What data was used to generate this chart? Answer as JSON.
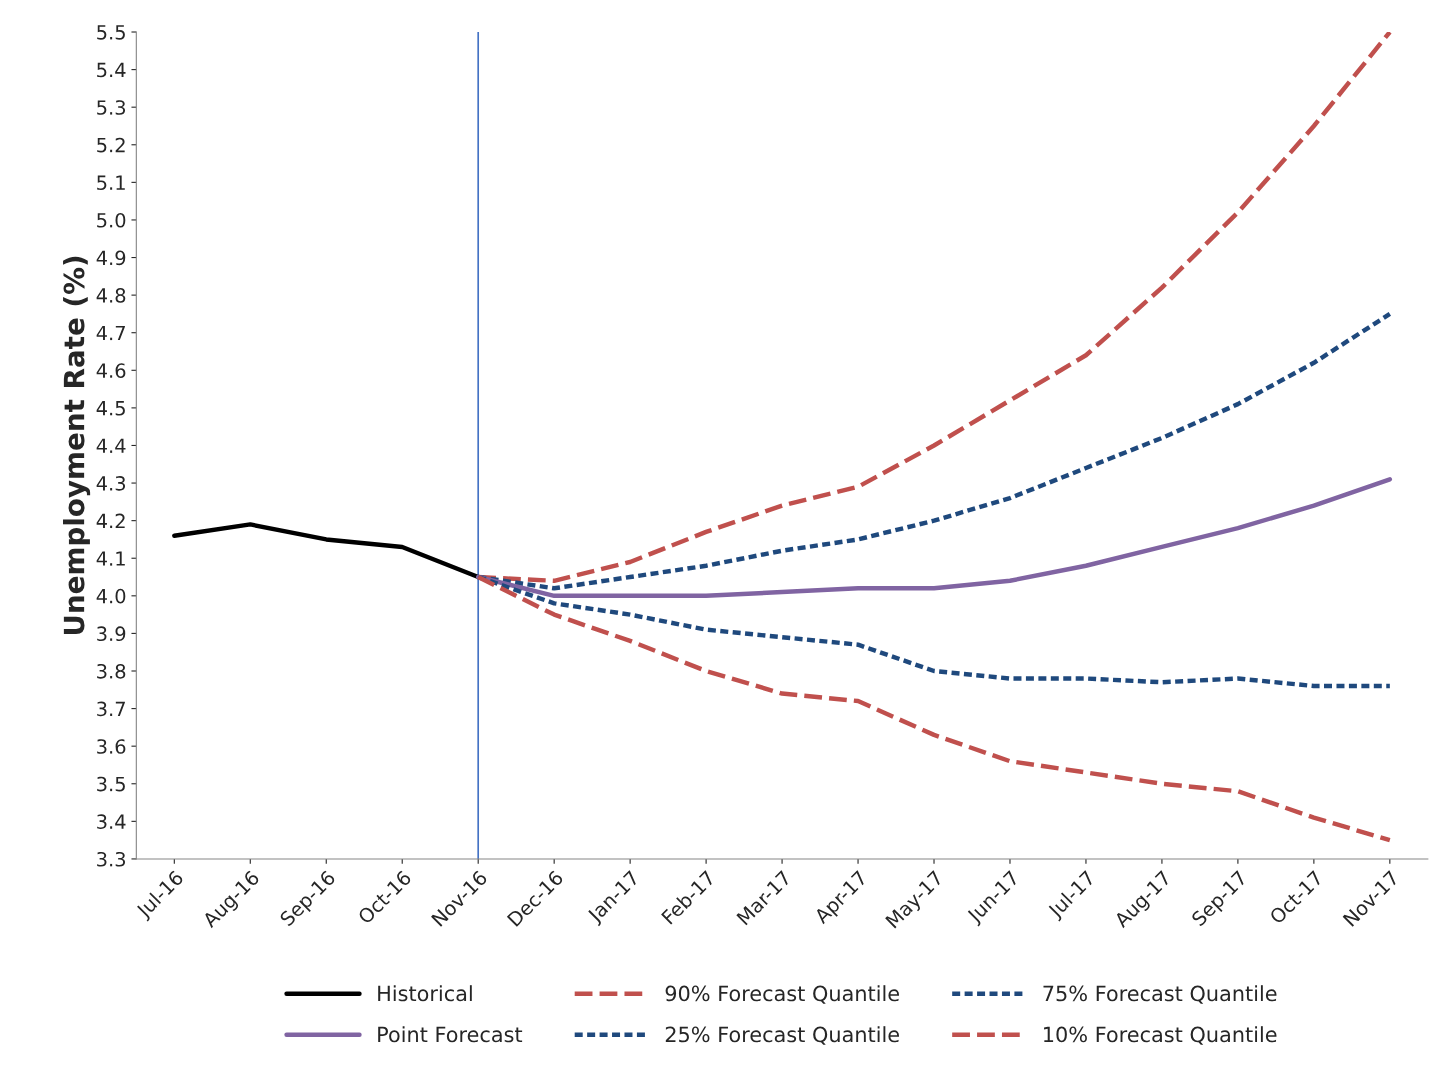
{
  "chart_data": {
    "type": "line",
    "ylabel": "Unemployment Rate (%)",
    "categories": [
      "Jul-16",
      "Aug-16",
      "Sep-16",
      "Oct-16",
      "Nov-16",
      "Dec-16",
      "Jan-17",
      "Feb-17",
      "Mar-17",
      "Apr-17",
      "May-17",
      "Jun-17",
      "Jul-17",
      "Aug-17",
      "Sep-17",
      "Oct-17",
      "Nov-17"
    ],
    "series": [
      {
        "name": "Historical",
        "color": "#000000",
        "line_style": "solid",
        "values": [
          4.16,
          4.19,
          4.15,
          4.13,
          4.05,
          null,
          null,
          null,
          null,
          null,
          null,
          null,
          null,
          null,
          null,
          null,
          null
        ]
      },
      {
        "name": "90% Forecast Quantile",
        "color": "#c0504d",
        "line_style": "dashed",
        "values": [
          null,
          null,
          null,
          null,
          4.05,
          4.04,
          4.09,
          4.17,
          4.24,
          4.29,
          4.4,
          4.52,
          4.64,
          4.82,
          5.02,
          5.25,
          5.5
        ]
      },
      {
        "name": "75% Forecast Quantile",
        "color": "#1f497d",
        "line_style": "dotted",
        "values": [
          null,
          null,
          null,
          null,
          4.05,
          4.02,
          4.05,
          4.08,
          4.12,
          4.15,
          4.2,
          4.26,
          4.34,
          4.42,
          4.51,
          4.62,
          4.75
        ]
      },
      {
        "name": "Point Forecast",
        "color": "#8064a2",
        "line_style": "solid",
        "values": [
          null,
          null,
          null,
          null,
          4.05,
          4.0,
          4.0,
          4.0,
          4.01,
          4.02,
          4.02,
          4.04,
          4.08,
          4.13,
          4.18,
          4.24,
          4.31
        ]
      },
      {
        "name": "25% Forecast Quantile",
        "color": "#1f497d",
        "line_style": "dotted",
        "values": [
          null,
          null,
          null,
          null,
          4.05,
          3.98,
          3.95,
          3.91,
          3.89,
          3.87,
          3.8,
          3.78,
          3.78,
          3.77,
          3.78,
          3.76,
          3.76
        ]
      },
      {
        "name": "10% Forecast Quantile",
        "color": "#c0504d",
        "line_style": "dashed",
        "values": [
          null,
          null,
          null,
          null,
          4.05,
          3.95,
          3.88,
          3.8,
          3.74,
          3.72,
          3.63,
          3.56,
          3.53,
          3.5,
          3.48,
          3.41,
          3.35
        ]
      }
    ],
    "ylim": [
      3.3,
      5.5
    ],
    "yticks": [
      3.3,
      3.4,
      3.5,
      3.6,
      3.7,
      3.8,
      3.9,
      {
        "value": 4.0,
        "label": "4.0"
      },
      4.1,
      4.2,
      4.3,
      4.4,
      4.5,
      4.6,
      4.7,
      4.8,
      4.9,
      {
        "value": 5.0,
        "label": "5.0"
      },
      5.1,
      5.2,
      5.3,
      5.4,
      5.5
    ],
    "ref_lines": [
      {
        "axis": "x",
        "value": "Nov-16",
        "color": "#4472c4",
        "line_style": "solid"
      }
    ],
    "grid": false,
    "legend": "bottom",
    "marker": "none"
  }
}
